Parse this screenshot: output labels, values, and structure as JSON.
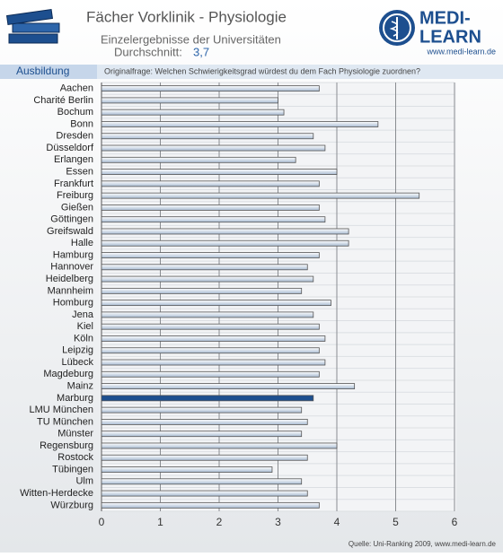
{
  "header": {
    "title": "Fächer Vorklinik - Physiologie",
    "subtitle": "Einzelergebnisse der Universitäten",
    "average_label": "Durchschnitt:",
    "average": "3,7",
    "section": "Ausbildung",
    "question": "Originalfrage: Welchen Schwierigkeitsgrad würdest du dem Fach Physiologie zuordnen?"
  },
  "logo": {
    "line1": "MEDI-",
    "line2": "LEARN",
    "url": "www.medi-learn.de"
  },
  "source": "Quelle: Uni-Ranking 2009, www.medi-learn.de",
  "chart_data": {
    "type": "bar",
    "orientation": "horizontal",
    "categories": [
      "Aachen",
      "Charité Berlin",
      "Bochum",
      "Bonn",
      "Dresden",
      "Düsseldorf",
      "Erlangen",
      "Essen",
      "Frankfurt",
      "Freiburg",
      "Gießen",
      "Göttingen",
      "Greifswald",
      "Halle",
      "Hamburg",
      "Hannover",
      "Heidelberg",
      "Mannheim",
      "Homburg",
      "Jena",
      "Kiel",
      "Köln",
      "Leipzig",
      "Lübeck",
      "Magdeburg",
      "Mainz",
      "Marburg",
      "LMU München",
      "TU München",
      "Münster",
      "Regensburg",
      "Rostock",
      "Tübingen",
      "Ulm",
      "Witten-Herdecke",
      "Würzburg"
    ],
    "values": [
      3.7,
      3.0,
      3.1,
      4.7,
      3.6,
      3.8,
      3.3,
      4.0,
      3.7,
      5.4,
      3.7,
      3.8,
      4.2,
      4.2,
      3.7,
      3.5,
      3.6,
      3.4,
      3.9,
      3.6,
      3.7,
      3.8,
      3.7,
      3.8,
      3.7,
      4.3,
      3.6,
      3.4,
      3.5,
      3.4,
      4.0,
      3.5,
      2.9,
      3.4,
      3.5,
      3.7
    ],
    "colors": [
      "#c9d6e6",
      "#c9d6e6",
      "#c9d6e6",
      "#c9d6e6",
      "#c9d6e6",
      "#c9d6e6",
      "#c9d6e6",
      "#c9d6e6",
      "#c9d6e6",
      "#c9d6e6",
      "#c9d6e6",
      "#c9d6e6",
      "#c9d6e6",
      "#c9d6e6",
      "#c9d6e6",
      "#c9d6e6",
      "#c9d6e6",
      "#c9d6e6",
      "#c9d6e6",
      "#c9d6e6",
      "#c9d6e6",
      "#c9d6e6",
      "#c9d6e6",
      "#c9d6e6",
      "#c9d6e6",
      "#c9d6e6",
      "#1d4f8f",
      "#c9d6e6",
      "#c9d6e6",
      "#c9d6e6",
      "#c9d6e6",
      "#c9d6e6",
      "#c9d6e6",
      "#c9d6e6",
      "#c9d6e6",
      "#c9d6e6"
    ],
    "xlim": [
      0,
      6
    ],
    "xticks": [
      0,
      1,
      2,
      3,
      4,
      5,
      6
    ],
    "grid": true
  }
}
